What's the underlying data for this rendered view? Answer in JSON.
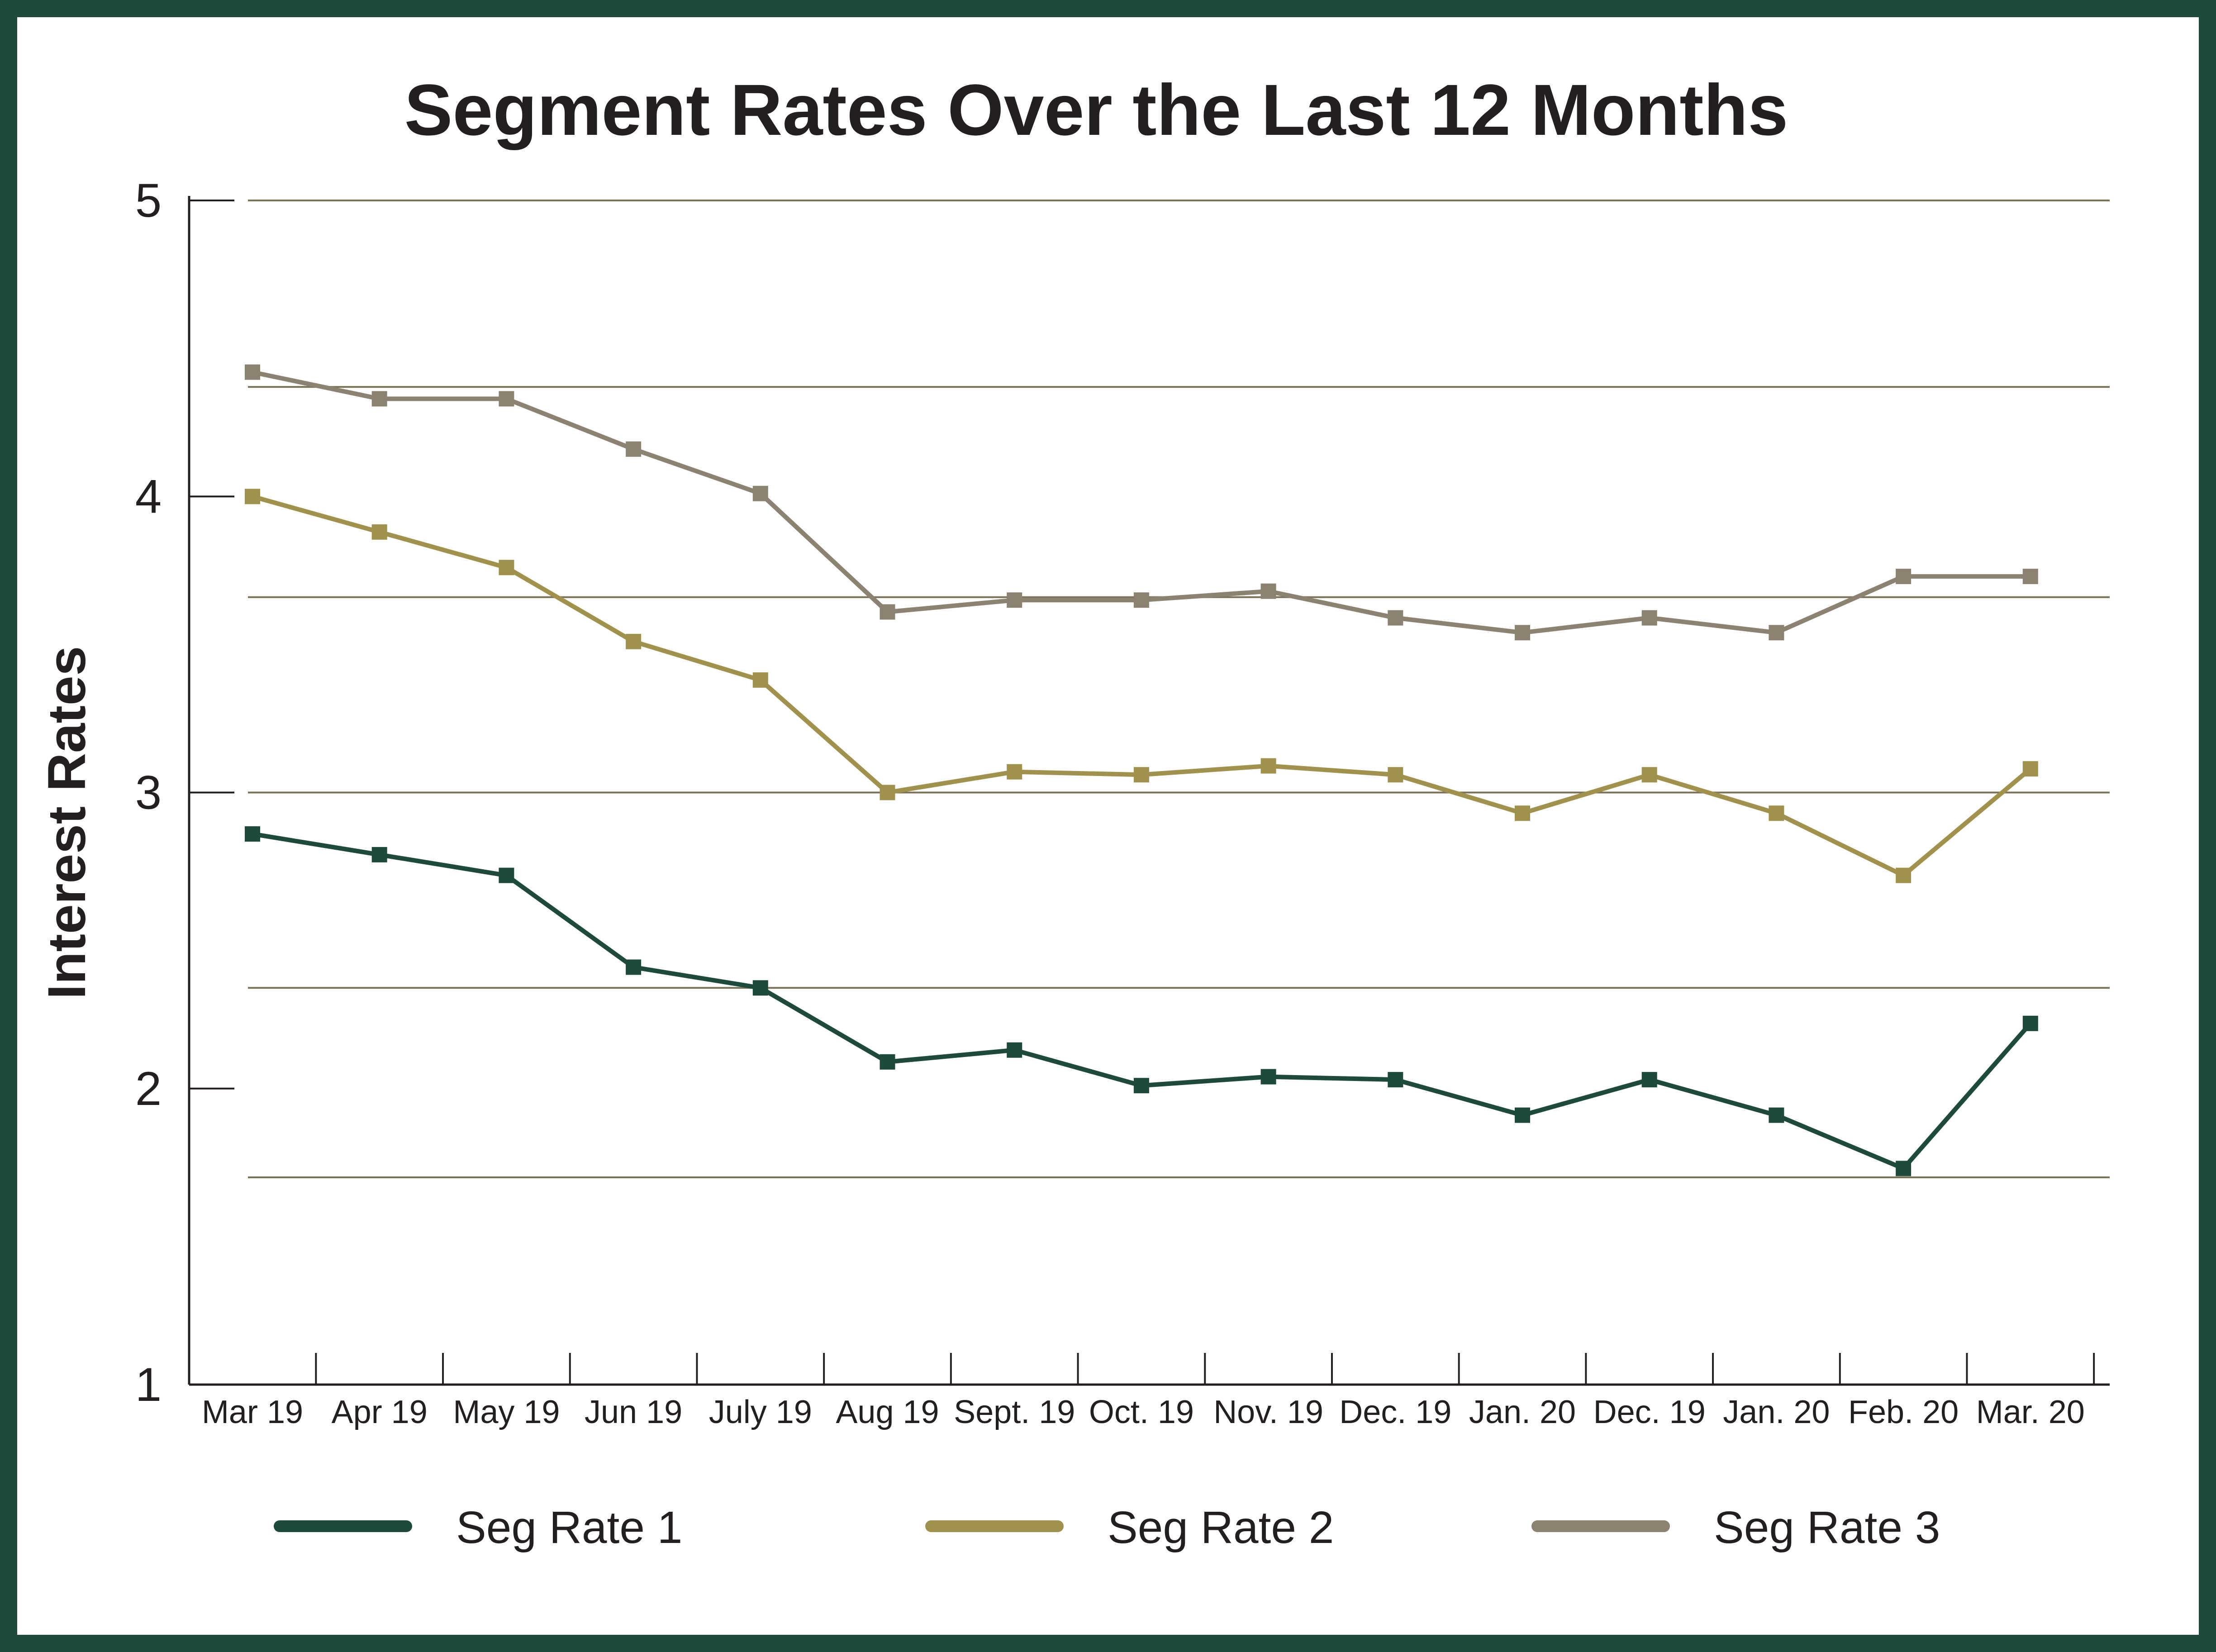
{
  "chart_data": {
    "type": "line",
    "title": "Segment Rates Over the Last 12 Months",
    "xlabel": "",
    "ylabel": "Interest Rates",
    "ylim": [
      1,
      5
    ],
    "yticks": [
      1,
      2,
      3,
      4,
      5
    ],
    "categories": [
      "Mar 19",
      "Apr 19",
      "May 19",
      "Jun 19",
      "July 19",
      "Aug 19",
      "Sept. 19",
      "Oct. 19",
      "Nov. 19",
      "Dec. 19",
      "Jan. 20",
      "Dec. 19",
      "Jan. 20",
      "Feb. 20",
      "Mar. 20"
    ],
    "gridlines": [
      1.7,
      2.34,
      3.0,
      3.66,
      4.37,
      5.0
    ],
    "legend_position": "bottom",
    "series": [
      {
        "name": "Seg Rate 1",
        "color": "#1e4a3e",
        "values": [
          2.86,
          2.79,
          2.72,
          2.41,
          2.34,
          2.09,
          2.13,
          2.01,
          2.04,
          2.03,
          1.91,
          2.03,
          1.91,
          1.73,
          2.22
        ]
      },
      {
        "name": "Seg Rate 2",
        "color": "#a0924c",
        "values": [
          4.0,
          3.88,
          3.76,
          3.51,
          3.38,
          3.0,
          3.07,
          3.06,
          3.09,
          3.06,
          2.93,
          3.06,
          2.93,
          2.72,
          3.08
        ]
      },
      {
        "name": "Seg Rate 3",
        "color": "#8c8272",
        "values": [
          4.42,
          4.33,
          4.33,
          4.16,
          4.01,
          3.61,
          3.65,
          3.65,
          3.68,
          3.59,
          3.54,
          3.59,
          3.54,
          3.73,
          3.73
        ]
      }
    ]
  }
}
